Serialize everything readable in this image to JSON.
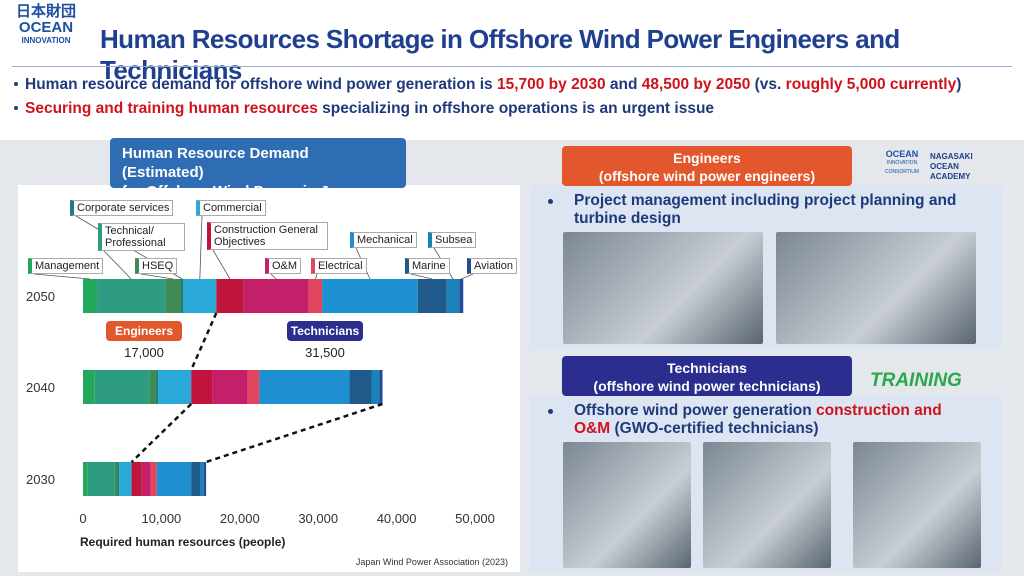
{
  "header": {
    "logo": [
      "日本",
      "財団",
      "OCEAN",
      "INNOVATION"
    ],
    "title": "Human Resources Shortage in Offshore Wind Power Engineers and Technicians"
  },
  "bullets": [
    [
      {
        "text": "Human resource demand for offshore wind power generation is ",
        "highlight": false
      },
      {
        "text": "15,700 by 2030",
        "highlight": true
      },
      {
        "text": " and ",
        "highlight": false
      },
      {
        "text": "48,500 by 2050",
        "highlight": true
      },
      {
        "text": " (vs. ",
        "highlight": false
      },
      {
        "text": "roughly 5,000 currently",
        "highlight": true
      },
      {
        "text": ")",
        "highlight": false
      }
    ],
    [
      {
        "text": "Securing and training human resources",
        "highlight": true
      },
      {
        "text": " specializing in offshore operations is an urgent issue",
        "highlight": false
      }
    ]
  ],
  "chart_data": {
    "type": "bar",
    "orientation": "horizontal",
    "stacked": true,
    "title": [
      "Human Resource Demand (Estimated)",
      "for Offshore Wind Power in Japan"
    ],
    "categories": [
      "2050",
      "2040",
      "2030"
    ],
    "series": [
      {
        "name": "Management",
        "color": "#22a85a",
        "values": [
          1800,
          1500,
          600
        ]
      },
      {
        "name": "Technical/ Professional",
        "color": "#2e9c80",
        "values": [
          8700,
          7000,
          3400
        ]
      },
      {
        "name": "HSEQ",
        "color": "#3f8a55",
        "values": [
          2000,
          800,
          400
        ]
      },
      {
        "name": "Corporate services",
        "color": "#1f7d7d",
        "values": [
          300,
          300,
          200
        ]
      },
      {
        "name": "Commercial",
        "color": "#2aa8d8",
        "values": [
          4200,
          4200,
          1600
        ]
      },
      {
        "name": "Construction General Objectives",
        "color": "#c0143c",
        "values": [
          3500,
          2700,
          1300
        ]
      },
      {
        "name": "O&M",
        "color": "#c4206a",
        "values": [
          8300,
          4500,
          1100
        ]
      },
      {
        "name": "Electrical",
        "color": "#e0475d",
        "values": [
          1700,
          1500,
          800
        ]
      },
      {
        "name": "Mechanical",
        "color": "#1e90d2",
        "values": [
          12200,
          11500,
          4400
        ]
      },
      {
        "name": "Marine",
        "color": "#1f5a8a",
        "values": [
          3700,
          2800,
          1200
        ]
      },
      {
        "name": "Subsea",
        "color": "#1a82ba",
        "values": [
          1600,
          1000,
          400
        ]
      },
      {
        "name": "Aviation",
        "color": "#24489a",
        "values": [
          500,
          400,
          300
        ]
      }
    ],
    "xlim": [
      0,
      50000
    ],
    "xticks": [
      0,
      {
        "value": 10000,
        "label": "10,000"
      },
      {
        "value": 20000,
        "label": "20,000"
      },
      {
        "value": 30000,
        "label": "30,000"
      },
      {
        "value": 40000,
        "label": "40,000"
      },
      {
        "value": 50000,
        "label": "50,000"
      }
    ],
    "xlabel": "Required human resources (people)",
    "annotations": [
      {
        "text": "Engineers",
        "value": 17000,
        "value_label": "17,000",
        "color": "#e2572b"
      },
      {
        "text": "Technicians",
        "value": 31500,
        "value_label": "31,500",
        "color": "#2b2e8f"
      }
    ],
    "source": "Japan Wind Power Association (2023)"
  },
  "panels": [
    {
      "heading": [
        "Engineers",
        "(offshore wind power engineers)"
      ],
      "color": "#e2572b",
      "bullet": [
        {
          "text": "Project management including project planning and turbine design",
          "highlight": false
        }
      ]
    },
    {
      "heading": [
        "Technicians",
        "(offshore wind power technicians)"
      ],
      "color": "#2b2e8f",
      "bullet": [
        {
          "text": "Offshore wind power generation ",
          "highlight": false
        },
        {
          "text": "construction and O&M",
          "highlight": true
        },
        {
          "text": " (GWO-certified technicians)",
          "highlight": false
        }
      ]
    }
  ],
  "logos": {
    "consortium": [
      "OCEAN",
      "INNOVATION CONSORTIUM"
    ],
    "academy": "NAGASAKI OCEAN ACADEMY",
    "training": "TRAINING"
  }
}
